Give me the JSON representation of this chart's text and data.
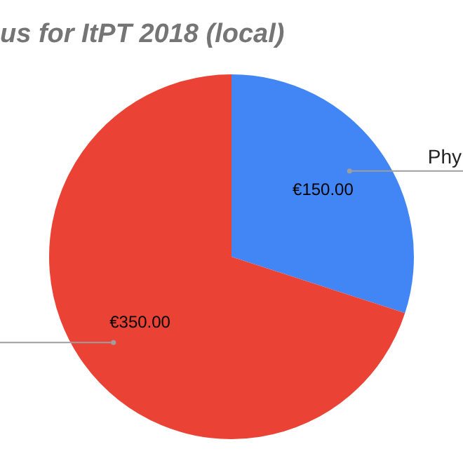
{
  "chart_data": {
    "type": "pie",
    "title": "us for ItPT 2018 (local)",
    "categories": [
      "Phy",
      null
    ],
    "values": [
      150,
      350
    ],
    "colors": [
      "#4285f4",
      "#ea4335"
    ],
    "value_labels": [
      "€150.00",
      "€350.00"
    ]
  }
}
